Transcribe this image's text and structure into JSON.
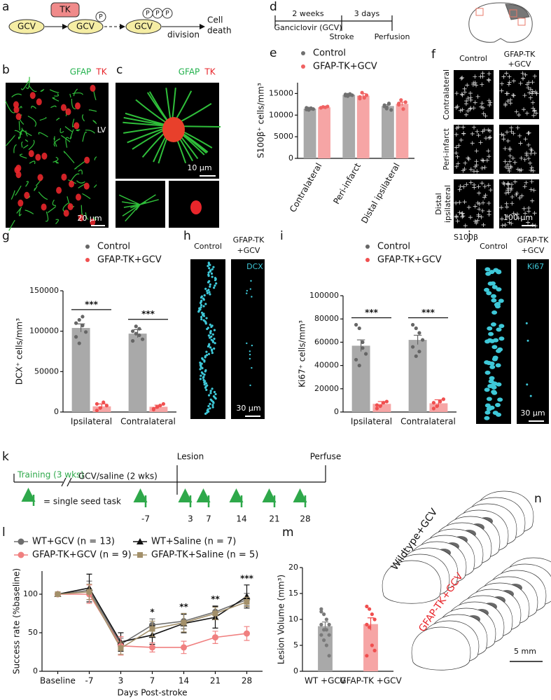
{
  "panel_labels": [
    "a",
    "b",
    "c",
    "d",
    "e",
    "f",
    "g",
    "h",
    "i",
    "j",
    "k",
    "l",
    "m",
    "n"
  ],
  "schematic_a": {
    "gcv": [
      "GCV",
      "GCV",
      "GCV"
    ],
    "tk": "TK",
    "phosphates": [
      "P",
      "P",
      "P",
      "P"
    ],
    "division": "division",
    "outcome": [
      "Cell",
      "death"
    ]
  },
  "panel_b": {
    "stain": [
      "GFAP",
      "TK"
    ],
    "region": "LV",
    "scale": "20 μm"
  },
  "panel_c": {
    "stain": [
      "GFAP",
      "TK"
    ],
    "scale": "10 μm"
  },
  "timeline_d": {
    "periods": [
      "2 weeks",
      "3 days"
    ],
    "drug": "Ganciclovir (GCV)",
    "events": [
      "Stroke",
      "Perfusion"
    ]
  },
  "panel_f": {
    "columns": [
      [
        "Control"
      ],
      [
        "GFAP-TK",
        "+GCV"
      ]
    ],
    "rows": [
      [
        "Contralateral"
      ],
      [
        "Peri-infarct"
      ],
      [
        "Distal",
        "ipsilateral"
      ]
    ],
    "scale": "100 μm",
    "stain": "S100β"
  },
  "panel_h": {
    "columns": [
      [
        "Control"
      ],
      [
        "GFAP-TK",
        "+GCV"
      ]
    ],
    "stain": "DCX",
    "scale": "30 μm"
  },
  "panel_j": {
    "columns": [
      [
        "Control"
      ],
      [
        "GFAP-TK",
        "+GCV"
      ]
    ],
    "stain": "Ki67",
    "scale": "30 μm"
  },
  "timeline_k": {
    "phases": [
      "Training (3 wks)",
      "GCV/saline (2 wks)"
    ],
    "events": [
      "Lesion",
      "Perfuse"
    ],
    "legend": "= single seed task",
    "days": [
      "-7",
      "3",
      "7",
      "14",
      "21",
      "28"
    ]
  },
  "panel_n": {
    "groups": [
      "Wildtype+GCV",
      "GFAP-TK+GCV"
    ],
    "scale": "5 mm"
  },
  "chart_data": [
    {
      "type": "bar",
      "ylabel": "S100β⁺ cells/mm³",
      "categories": [
        "Contralateral",
        "Peri-infarct",
        "Distal ipsilateral"
      ],
      "series": [
        {
          "name": "Control",
          "color": "#a9a9a9",
          "point_color": "#707070",
          "values": [
            11500,
            14700,
            12100
          ],
          "errors": [
            200,
            200,
            300
          ],
          "points": [
            [
              11300,
              11500,
              11600,
              11400,
              11700,
              11200,
              11500
            ],
            [
              14500,
              14700,
              14900,
              14600,
              14800,
              14400,
              14700
            ],
            [
              12000,
              11500,
              12600,
              11200,
              12300,
              11800,
              12700
            ]
          ]
        },
        {
          "name": "GFAP-TK+GCV",
          "color": "#f6a5a5",
          "point_color": "#f06262",
          "values": [
            11800,
            14500,
            12600
          ],
          "errors": [
            200,
            500,
            400
          ],
          "points": [
            [
              11700,
              11900,
              11800,
              12000,
              11700
            ],
            [
              14200,
              15200,
              14000,
              14600,
              13800
            ],
            [
              12400,
              13500,
              11400,
              13000,
              12700
            ]
          ]
        }
      ],
      "ylim": [
        0,
        17500
      ],
      "yticks": [
        0,
        5000,
        10000,
        15000
      ]
    },
    {
      "type": "bar",
      "ylabel": "DCX⁺ cells/mm³",
      "categories": [
        "Ipsilateral",
        "Contralateral"
      ],
      "series": [
        {
          "name": "Control",
          "color": "#a9a9a9",
          "point_color": "#666666",
          "values": [
            104000,
            97000
          ],
          "errors": [
            5000,
            5000
          ],
          "points": [
            [
              110000,
              114000,
              107000,
              99000,
              93000,
              85000,
              118000
            ],
            [
              100000,
              106000,
              95000,
              90000,
              88000,
              97000,
              103000
            ]
          ]
        },
        {
          "name": "GFAP-TK+GCV",
          "color": "#f6a5a5",
          "point_color": "#f04f4f",
          "values": [
            7000,
            6500
          ],
          "errors": [
            3000,
            2000
          ],
          "points": [
            [
              2000,
              5000,
              12000,
              8000,
              10000
            ],
            [
              3000,
              6000,
              8000,
              10000,
              4000
            ]
          ]
        }
      ],
      "ylim": [
        0,
        150000
      ],
      "yticks": [
        0,
        50000,
        100000,
        150000
      ],
      "significance": [
        "***",
        "***"
      ]
    },
    {
      "type": "bar",
      "ylabel": "Ki67⁺ cells/mm³",
      "categories": [
        "Ipsilateral",
        "Contralateral"
      ],
      "series": [
        {
          "name": "Control",
          "color": "#a9a9a9",
          "point_color": "#666666",
          "values": [
            57000,
            62000
          ],
          "errors": [
            5000,
            4000
          ],
          "points": [
            [
              75000,
              72000,
              55000,
              50000,
              45000,
              40000,
              60000
            ],
            [
              75000,
              72000,
              68000,
              62000,
              56000,
              48000,
              52000
            ]
          ]
        },
        {
          "name": "GFAP-TK+GCV",
          "color": "#f6a5a5",
          "point_color": "#f04f4f",
          "values": [
            7000,
            7500
          ],
          "errors": [
            2000,
            3000
          ],
          "points": [
            [
              3000,
              5000,
              8000,
              9000,
              6000
            ],
            [
              3000,
              5000,
              9000,
              11000,
              8000
            ]
          ]
        }
      ],
      "ylim": [
        0,
        100000
      ],
      "yticks": [
        0,
        20000,
        40000,
        60000,
        80000,
        100000
      ],
      "significance": [
        "***",
        "***"
      ]
    },
    {
      "type": "line",
      "xlabel": "Days Post-stroke",
      "ylabel": "Success rate (%baseline)",
      "categories": [
        "Baseline",
        "-7",
        "3",
        "7",
        "14",
        "21",
        "28"
      ],
      "series": [
        {
          "name": "WT+GCV (n = 13)",
          "color": "#6e6e6e",
          "marker": "circle",
          "values": [
            100,
            105,
            35,
            60,
            65,
            77,
            93
          ],
          "errors": [
            0,
            12,
            8,
            8,
            10,
            8,
            8
          ]
        },
        {
          "name": "WT+Saline (n = 7)",
          "color": "#111111",
          "marker": "triangle",
          "values": [
            100,
            108,
            38,
            47,
            62,
            70,
            97
          ],
          "errors": [
            0,
            18,
            12,
            12,
            12,
            14,
            15
          ]
        },
        {
          "name": "GFAP-TK+GCV (n = 9)",
          "color": "#f08080",
          "marker": "circle",
          "values": [
            100,
            100,
            33,
            31,
            31,
            44,
            49
          ],
          "errors": [
            0,
            12,
            12,
            6,
            8,
            8,
            9
          ]
        },
        {
          "name": "GFAP-TK+Saline (n = 5)",
          "color": "#a3906a",
          "marker": "square",
          "values": [
            100,
            103,
            30,
            55,
            63,
            75,
            90
          ],
          "errors": [
            0,
            10,
            8,
            10,
            12,
            8,
            6
          ]
        }
      ],
      "ylim": [
        0,
        130
      ],
      "yticks": [
        0,
        50,
        100
      ],
      "significance": [
        null,
        null,
        null,
        "*",
        "**",
        "**",
        "***"
      ]
    },
    {
      "type": "bar",
      "ylabel": "Lesion Volume (mm³)",
      "categories": [
        "WT +GCV",
        "GFAP-TK +GCV"
      ],
      "series": [
        {
          "color": "#a9a9a9",
          "point_color": "#7a7a7a",
          "values": [
            8.7,
            null
          ],
          "errors": [
            0.8,
            null
          ],
          "points": [
            [
              12,
              11,
              10,
              9,
              9,
              8,
              8,
              7,
              7,
              6,
              5,
              3,
              11.5
            ],
            []
          ]
        },
        {
          "color": "#f6a5a5",
          "point_color": "#f04f4f",
          "values": [
            null,
            9.1
          ],
          "errors": [
            null,
            1.2
          ],
          "points": [
            [],
            [
              12.5,
              12,
              11,
              10,
              9,
              8.5,
              5,
              4,
              3
            ]
          ]
        }
      ],
      "ylim": [
        0,
        20
      ],
      "yticks": [
        0,
        5,
        10,
        15,
        20
      ]
    }
  ]
}
